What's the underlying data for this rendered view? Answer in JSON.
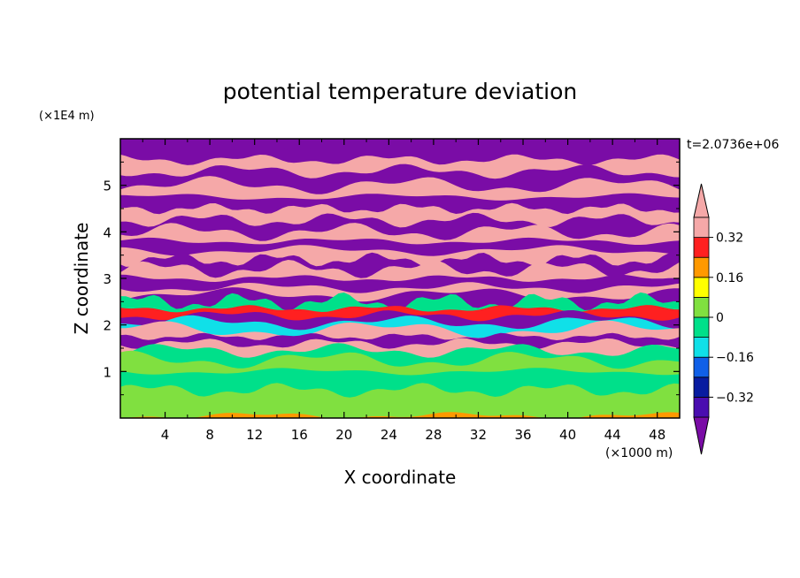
{
  "chart_data": {
    "type": "heatmap",
    "title": "potential temperature deviation",
    "xlabel": "X coordinate",
    "ylabel": "Z coordinate",
    "x_unit": "(×1000 m)",
    "y_unit": "(×1E4 m)",
    "time_label": "t=2.0736e+06",
    "xlim": [
      0,
      50
    ],
    "ylim": [
      0,
      6
    ],
    "x_ticks": [
      4,
      8,
      12,
      16,
      20,
      24,
      28,
      32,
      36,
      40,
      44,
      48
    ],
    "x_tick_labels": [
      "4",
      "8",
      "12",
      "16",
      "20",
      "24",
      "28",
      "32",
      "36",
      "40",
      "44",
      "48"
    ],
    "y_ticks": [
      1,
      2,
      3,
      4,
      5
    ],
    "y_tick_labels": [
      "1",
      "2",
      "3",
      "4",
      "5"
    ],
    "colorbar": {
      "levels": [
        -0.4,
        -0.32,
        -0.24,
        -0.16,
        -0.08,
        0,
        0.08,
        0.16,
        0.24,
        0.32,
        0.4
      ],
      "labeled_levels": [
        -0.32,
        -0.16,
        0,
        0.16,
        0.32
      ],
      "labels": [
        "0.32",
        "0.16",
        "0",
        "−0.16",
        "−0.32"
      ],
      "colors": [
        "#7a0ca6",
        "#4a0db0",
        "#081ca0",
        "#1060e8",
        "#10e0e8",
        "#00e08a",
        "#80e040",
        "#ffff00",
        "#ff9900",
        "#ff2020",
        "#f5a8a8"
      ],
      "extend": "both"
    },
    "bands": [
      {
        "z": 0.05,
        "value": 0.2
      },
      {
        "z": 0.3,
        "value": 0.08
      },
      {
        "z": 0.6,
        "value": 0.02
      },
      {
        "z": 0.8,
        "value": -0.05
      },
      {
        "z": 1.0,
        "value": 0.0
      },
      {
        "z": 1.25,
        "value": 0.05
      },
      {
        "z": 1.45,
        "value": -0.02
      },
      {
        "z": 1.6,
        "value": 0.4
      },
      {
        "z": 1.75,
        "value": -0.4
      },
      {
        "z": 1.9,
        "value": 0.4
      },
      {
        "z": 2.05,
        "value": -0.1
      },
      {
        "z": 2.2,
        "value": -0.4
      },
      {
        "z": 2.35,
        "value": 0.3
      },
      {
        "z": 2.5,
        "value": -0.05
      },
      {
        "z": 2.65,
        "value": -0.4
      },
      {
        "z": 2.8,
        "value": 0.4
      },
      {
        "z": 3.0,
        "value": -0.4
      },
      {
        "z": 3.2,
        "value": 0.4
      },
      {
        "z": 3.4,
        "value": -0.4
      },
      {
        "z": 3.6,
        "value": 0.4
      },
      {
        "z": 3.8,
        "value": -0.4
      },
      {
        "z": 4.0,
        "value": 0.4
      },
      {
        "z": 4.25,
        "value": -0.4
      },
      {
        "z": 4.5,
        "value": 0.4
      },
      {
        "z": 4.75,
        "value": -0.4
      },
      {
        "z": 5.0,
        "value": 0.4
      },
      {
        "z": 5.3,
        "value": -0.4
      },
      {
        "z": 5.55,
        "value": 0.4
      },
      {
        "z": 5.8,
        "value": -0.4
      }
    ]
  }
}
